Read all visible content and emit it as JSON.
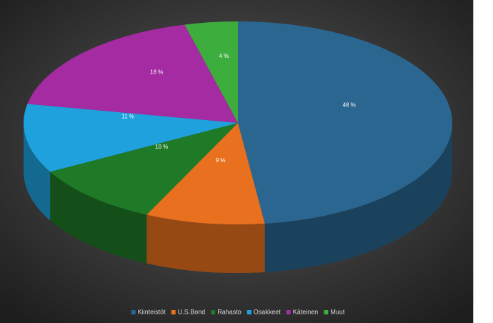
{
  "chart_data": {
    "type": "pie3d",
    "categories": [
      "Kiinteistöt",
      "U.S.Bond",
      "Rahasto",
      "Osakkeet",
      "Käteinen",
      "Muut"
    ],
    "values": [
      48,
      9,
      10,
      11,
      18,
      4
    ],
    "value_labels": [
      "48 %",
      "9 %",
      "10 %",
      "11 %",
      "18 %",
      "4 %"
    ],
    "colors": [
      "#2a6690",
      "#e8701f",
      "#1f7a27",
      "#1fa1de",
      "#a42ba2",
      "#3dae3d"
    ],
    "legend": "bottom"
  }
}
